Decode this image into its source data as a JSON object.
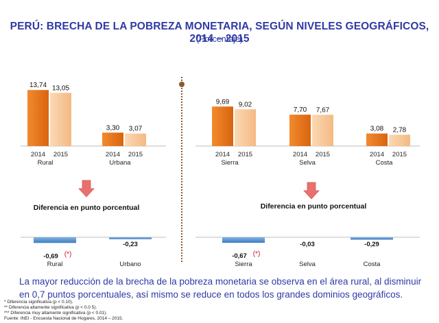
{
  "title": "PERÚ: BRECHA DE LA POBREZA MONETARIA, SEGÚN NIVELES GEOGRÁFICOS, 2014 – 2015",
  "subtitle": "(Porcentaje)",
  "colors": {
    "bar_2014": "#e8731c",
    "bar_2015": "#f7c79a",
    "diff_bar": "#4f8fd0",
    "arrow": "#e8716e",
    "title": "#2f3aa5"
  },
  "chart_data": [
    {
      "type": "bar",
      "categories": [
        "Rural",
        "Urbana"
      ],
      "x_sublabels": [
        "2014",
        "2015"
      ],
      "series": [
        {
          "values": [
            13.74,
            3.3
          ],
          "labels": [
            "13,74",
            "3,30"
          ]
        },
        {
          "values": [
            13.05,
            3.07
          ],
          "labels": [
            "13,05",
            "3,07"
          ]
        }
      ]
    },
    {
      "type": "bar",
      "categories": [
        "Sierra",
        "Selva",
        "Costa"
      ],
      "x_sublabels": [
        "2014",
        "2015"
      ],
      "series": [
        {
          "values": [
            9.69,
            7.7,
            3.08
          ],
          "labels": [
            "9,69",
            "7,70",
            "3,08"
          ]
        },
        {
          "values": [
            9.02,
            7.67,
            2.78
          ],
          "labels": [
            "9,02",
            "7,67",
            "2,78"
          ]
        }
      ]
    },
    {
      "type": "bar",
      "title": "Diferencia en punto porcentual",
      "categories": [
        "Rural",
        "Urbano"
      ],
      "values": [
        -0.69,
        -0.23
      ],
      "labels": [
        "-0,69",
        "-0,23"
      ],
      "significance": [
        "(*)",
        ""
      ]
    },
    {
      "type": "bar",
      "title": "Diferencia en punto porcentual",
      "categories": [
        "Sierra",
        "Selva",
        "Costa"
      ],
      "values": [
        -0.67,
        -0.03,
        -0.29
      ],
      "labels": [
        "-0,67",
        "-0,03",
        "-0,29"
      ],
      "significance": [
        "(*)",
        "",
        ""
      ]
    }
  ],
  "summary": "La mayor reducción de la brecha de la pobreza monetaria se observa en el área rural, al disminuir en 0,7 puntos porcentuales, así mismo se reduce en todos los grandes dominios geográficos.",
  "notes": [
    "* Diferencia significativa (p < 0.10).",
    "** Diferencia altamente significativa (p < 0.0 5).",
    "*** Diferencia muy altamente significativa (p < 0.01).",
    "Fuente: INEI - Encuesta Nacional de Hogares, 2014 – 2015."
  ]
}
